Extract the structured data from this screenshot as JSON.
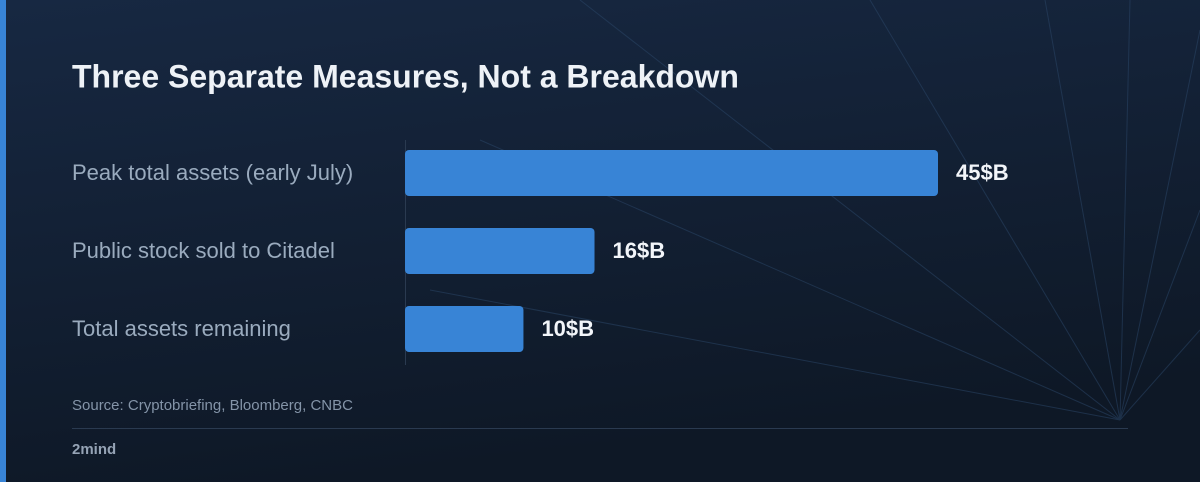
{
  "chart_data": {
    "type": "hbar",
    "title": "Three Separate Measures, Not a Breakdown",
    "categories": [
      "Peak total assets (early July)",
      "Public stock sold to Citadel",
      "Total assets remaining"
    ],
    "values": [
      45,
      16,
      10
    ],
    "value_labels": [
      "45$B",
      "16$B",
      "10$B"
    ],
    "color": "#3884d6",
    "source": "Source: Cryptobriefing, Bloomberg, CNBC",
    "footer": "2mind"
  }
}
